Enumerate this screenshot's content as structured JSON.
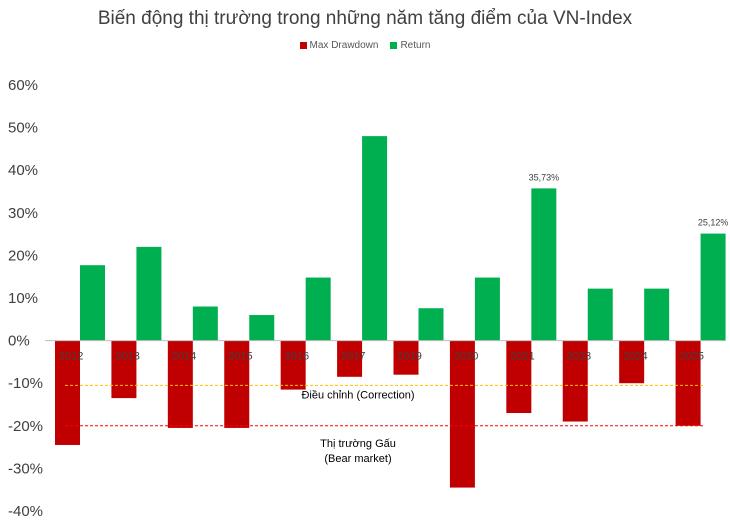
{
  "chart_data": {
    "type": "bar",
    "title": "Biến động thị trường trong những năm tăng điểm của VN-Index",
    "categories": [
      "2012",
      "2013",
      "2014",
      "2015",
      "2016",
      "2017",
      "2019",
      "2020",
      "2021",
      "2023",
      "2024",
      "2025"
    ],
    "series": [
      {
        "name": "Max Drawdown",
        "color": "#C00000",
        "values": [
          -24.5,
          -13.5,
          -20.5,
          -20.5,
          -11.5,
          -8.5,
          -8.0,
          -34.5,
          -17.0,
          -19.0,
          -10.0,
          -20.0
        ]
      },
      {
        "name": "Return",
        "color": "#00B050",
        "values": [
          17.7,
          22.0,
          8.0,
          6.0,
          14.8,
          48.0,
          7.6,
          14.8,
          35.73,
          12.2,
          12.2,
          25.12
        ]
      }
    ],
    "data_labels": [
      {
        "category": "2021",
        "series": "Return",
        "text": "35,73%"
      },
      {
        "category": "2025",
        "series": "Return",
        "text": "25,12%"
      }
    ],
    "ylim": [
      -40,
      60
    ],
    "yticks": [
      60,
      50,
      40,
      30,
      20,
      10,
      0,
      -10,
      -20,
      -30,
      -40
    ],
    "ytick_labels": [
      "60%",
      "50%",
      "40%",
      "30%",
      "20%",
      "10%",
      "0%",
      "-10%",
      "-20%",
      "-30%",
      "-40%"
    ],
    "grid": false,
    "legend_position": "top",
    "reference_lines": [
      {
        "value": -10.5,
        "color": "#FFC000",
        "style": "dashed",
        "label_lines": [
          "Điều chỉnh (Correction)"
        ]
      },
      {
        "value": -20,
        "color": "#FF0000",
        "style": "dashed",
        "label_lines": [
          "Thị trường Gấu",
          "(Bear market)"
        ]
      }
    ]
  }
}
